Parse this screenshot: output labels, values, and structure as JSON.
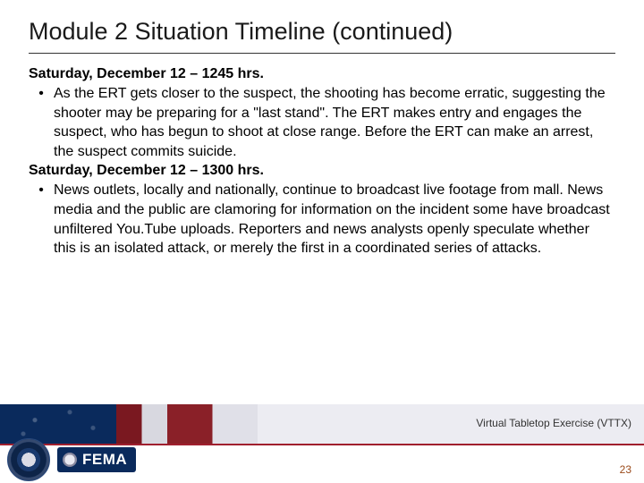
{
  "title": "Module 2 Situation Timeline (continued)",
  "sections": [
    {
      "timestamp": "Saturday, December 12 – 1245 hrs.",
      "bullet": "As the ERT gets closer to the suspect, the shooting has become erratic, suggesting the shooter may be preparing for a \"last stand\". The ERT makes entry and engages the suspect, who has begun to shoot at close range.  Before the ERT can make an arrest, the suspect commits suicide."
    },
    {
      "timestamp": "Saturday, December 12 – 1300 hrs.",
      "bullet": "News outlets, locally and nationally, continue to broadcast live footage from mall.  News media and the public are clamoring for information on the incident some have broadcast unfiltered You.Tube uploads. Reporters and news analysts openly speculate whether this is an isolated attack, or merely the first in a coordinated series of attacks."
    }
  ],
  "footer": {
    "exercise_label": "Virtual Tabletop Exercise (VTTX)",
    "page_number": "23",
    "fema_text": "FEMA"
  },
  "colors": {
    "title_color": "#1a1a1a",
    "divider_color": "#333333",
    "navy": "#0a2a5c",
    "red_stripe": "#8a2028",
    "page_num_color": "#9a4a1a"
  }
}
